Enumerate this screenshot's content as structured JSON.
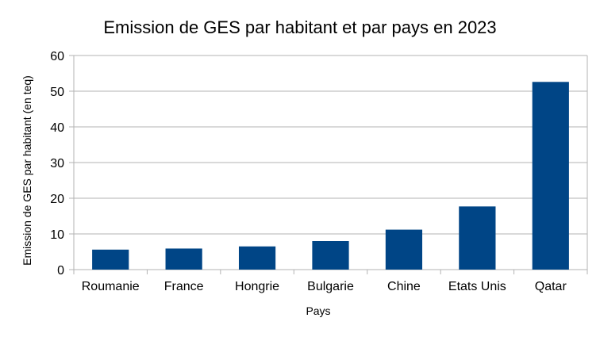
{
  "chart_data": {
    "type": "bar",
    "title": "Emission de GES par habitant et par pays en 2023",
    "xlabel": "Pays",
    "ylabel": "Emission de GES par habitant (en teq)",
    "categories": [
      "Roumanie",
      "France",
      "Hongrie",
      "Bulgarie",
      "Chine",
      "Etats Unis",
      "Qatar"
    ],
    "values": [
      5.6,
      5.9,
      6.5,
      8.0,
      11.2,
      17.7,
      52.6
    ],
    "ylim": [
      0,
      60
    ],
    "yticks": [
      0,
      10,
      20,
      30,
      40,
      50,
      60
    ],
    "grid": true,
    "legend": "none",
    "bar_color": "#004586"
  }
}
